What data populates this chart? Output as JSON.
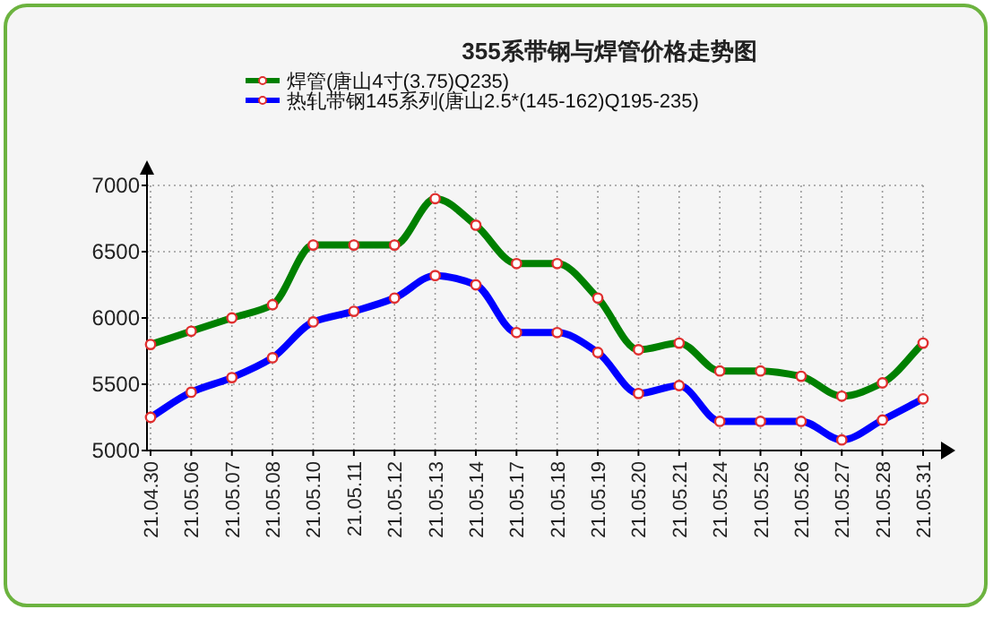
{
  "chart_data": {
    "type": "line",
    "title": "355系带钢与焊管价格走势图",
    "categories": [
      "21.04.30",
      "21.05.06",
      "21.05.07",
      "21.05.08",
      "21.05.10",
      "21.05.11",
      "21.05.12",
      "21.05.13",
      "21.05.14",
      "21.05.17",
      "21.05.18",
      "21.05.19",
      "21.05.20",
      "21.05.21",
      "21.05.24",
      "21.05.25",
      "21.05.26",
      "21.05.27",
      "21.05.28",
      "21.05.31"
    ],
    "series": [
      {
        "name": "焊管(唐山4寸(3.75)Q235)",
        "color": "#008000",
        "values": [
          5800,
          5900,
          6000,
          6100,
          6550,
          6550,
          6550,
          6900,
          6700,
          6410,
          6410,
          6150,
          5760,
          5810,
          5600,
          5600,
          5560,
          5410,
          5510,
          5810
        ]
      },
      {
        "name": "热轧带钢145系列(唐山2.5*(145-162)Q195-235)",
        "color": "#0000ff",
        "values": [
          5250,
          5440,
          5550,
          5700,
          5970,
          6050,
          6150,
          6320,
          6250,
          5890,
          5890,
          5740,
          5430,
          5490,
          5220,
          5220,
          5220,
          5080,
          5230,
          5390
        ]
      }
    ],
    "ylim": [
      5000,
      7000
    ],
    "yticks": [
      5000,
      5500,
      6000,
      6500,
      7000
    ],
    "grid": true,
    "legend": "top left",
    "marker": "circle",
    "line_style": "solid"
  }
}
